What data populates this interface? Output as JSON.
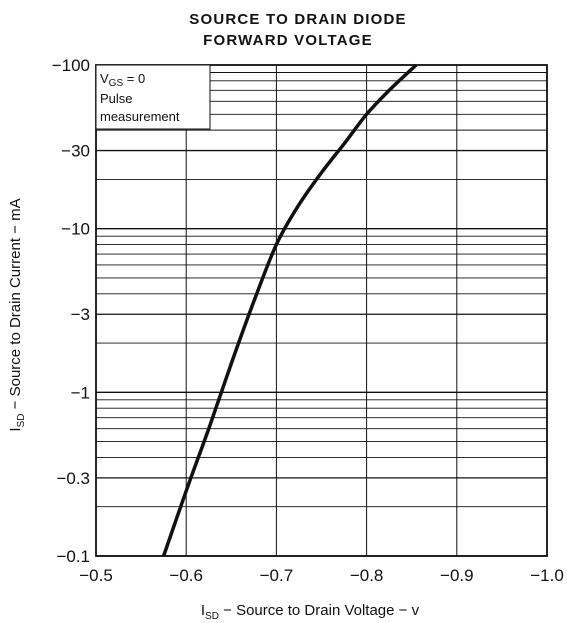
{
  "chart_data": {
    "type": "line",
    "title": [
      "SOURCE TO DRAIN DIODE",
      "FORWARD VOLTAGE"
    ],
    "xlabel": {
      "main": "I",
      "sub": "SD",
      "rest": " − Source to Drain Voltage − v"
    },
    "ylabel": {
      "main": "I",
      "sub": "SD",
      "rest": " − Source to Drain Current − mA"
    },
    "y_scale": "log",
    "xlim": [
      -0.5,
      -1.0
    ],
    "ylim": [
      -0.1,
      -100
    ],
    "x_ticks": [
      -0.5,
      -0.6,
      -0.7,
      -0.8,
      -0.9,
      -1.0
    ],
    "x_tick_labels": [
      "−0.5",
      "−0.6",
      "−0.7",
      "−0.8",
      "−0.9",
      "−1.0"
    ],
    "y_ticks": [
      -0.1,
      -0.3,
      -1,
      -3,
      -10,
      -30,
      -100
    ],
    "y_tick_labels": [
      "−0.1",
      "−0.3",
      "−1",
      "−3",
      "−10",
      "−30",
      "−100"
    ],
    "grid": true,
    "annotation": {
      "line1_main": "V",
      "line1_sub": "GS",
      "line1_rest": " = 0",
      "line2": "Pulse",
      "line3": "measurement"
    },
    "series": [
      {
        "x": [
          -0.575,
          -0.6,
          -0.625,
          -0.65,
          -0.675,
          -0.7,
          -0.725,
          -0.75,
          -0.775,
          -0.8,
          -0.825,
          -0.855
        ],
        "y": [
          -0.1,
          -0.25,
          -0.6,
          -1.5,
          -3.6,
          -8.0,
          -14,
          -22,
          -33,
          -50,
          -70,
          -100
        ]
      }
    ],
    "line_color": "#111111"
  }
}
